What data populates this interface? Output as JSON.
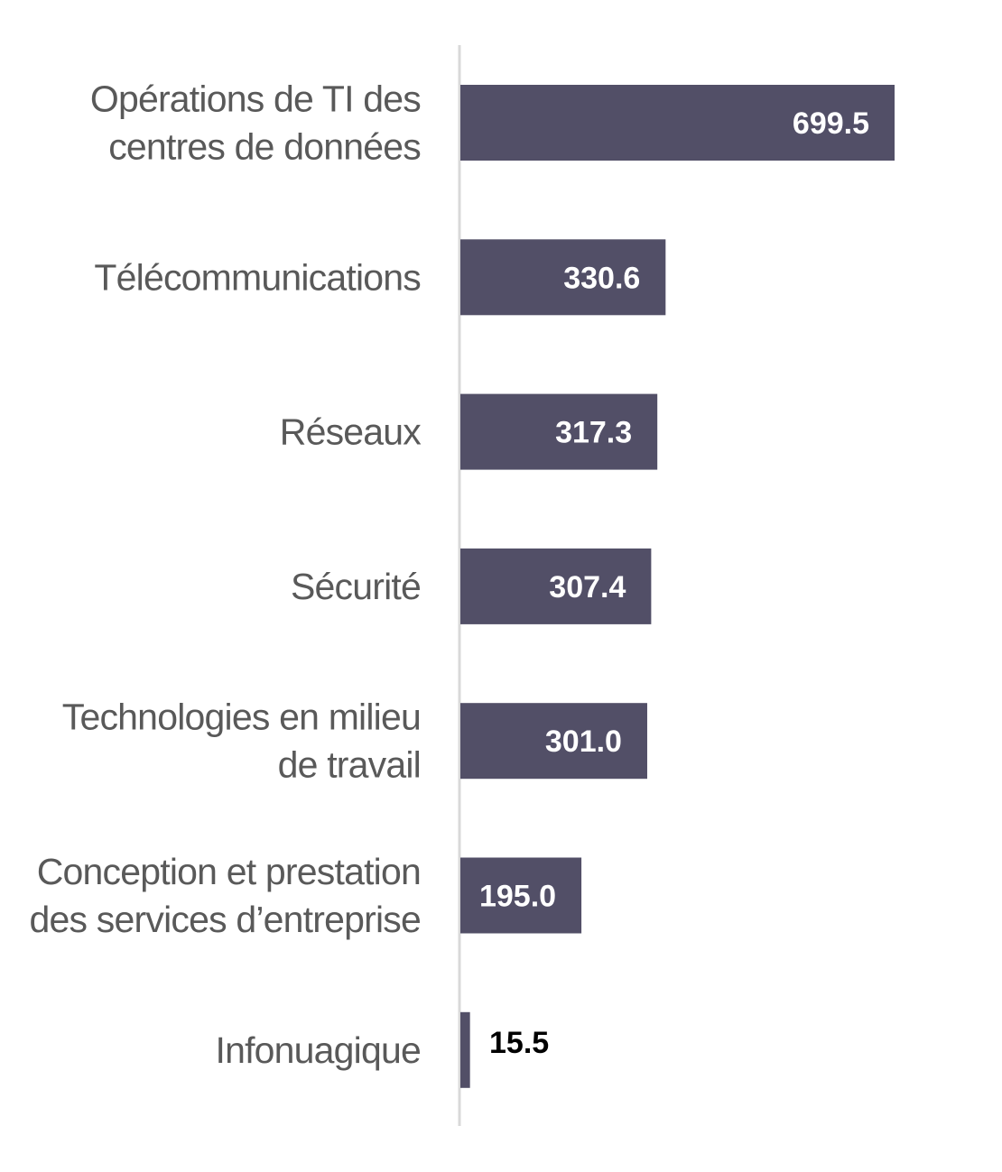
{
  "colors": {
    "bar": "#524f67",
    "axis": "#d9d9d9",
    "label_inside": "#ffffff",
    "label_outside": "#000000",
    "category_text": "#595959"
  },
  "chart_data": {
    "type": "bar",
    "orientation": "horizontal",
    "categories": [
      [
        "Opérations de TI des",
        "centres de données"
      ],
      [
        "Télécommunications"
      ],
      [
        "Réseaux"
      ],
      [
        "Sécurité"
      ],
      [
        "Technologies en milieu",
        "de travail"
      ],
      [
        "Conception et prestation",
        "des services d’entreprise"
      ],
      [
        "Infonuagique"
      ]
    ],
    "values": [
      699.5,
      330.6,
      317.3,
      307.4,
      301.0,
      195.0,
      15.5
    ],
    "value_labels": [
      "699.5",
      "330.6",
      "317.3",
      "307.4",
      "301.0",
      "195.0",
      "15.5"
    ],
    "title": "",
    "xlabel": "",
    "ylabel": "",
    "xlim": [
      0,
      700
    ],
    "grid": false,
    "legend": "none"
  }
}
